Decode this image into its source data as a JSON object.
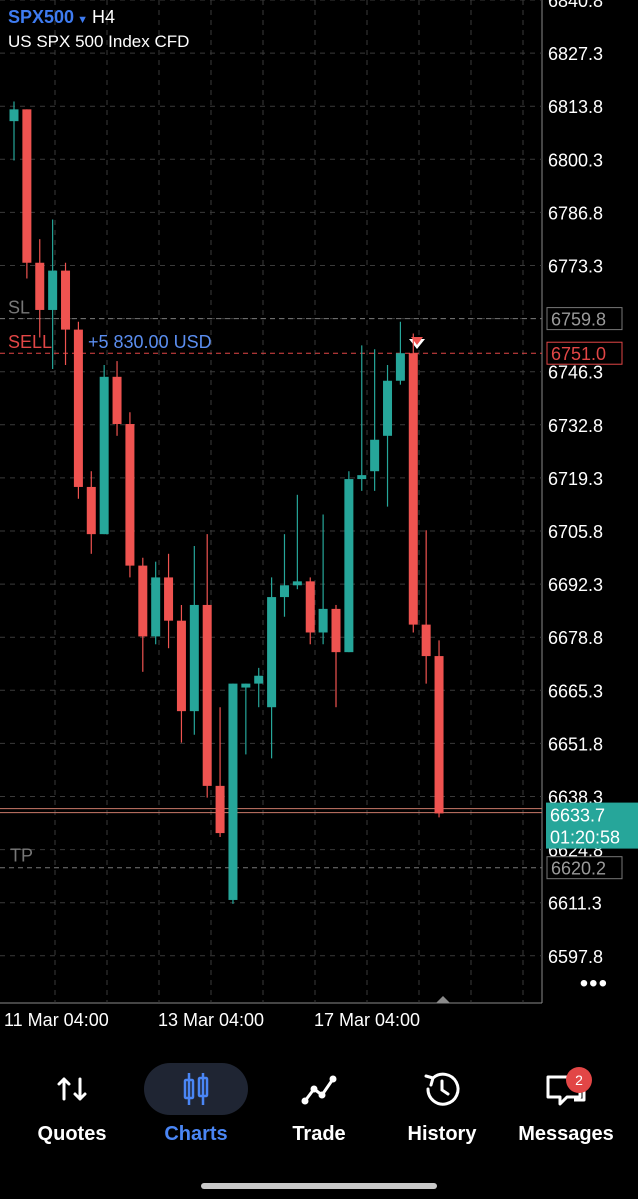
{
  "header": {
    "symbol": "SPX500",
    "timeframe": "H4",
    "instrument_name": "US SPX 500 Index CFD"
  },
  "chart_data": {
    "type": "candlestick",
    "price_axis_labels": [
      "6840.8",
      "6827.3",
      "6813.8",
      "6800.3",
      "6786.8",
      "6773.3",
      "6759.8",
      "6746.3",
      "6732.8",
      "6719.3",
      "6705.8",
      "6692.3",
      "6678.8",
      "6665.3",
      "6651.8",
      "6638.3",
      "6624.8",
      "6611.3",
      "6597.8"
    ],
    "time_axis_labels": [
      "11 Mar 04:00",
      "13 Mar 04:00",
      "17 Mar 04:00"
    ],
    "current_price": "6633.7",
    "countdown": "01:20:58",
    "lines": {
      "sl": {
        "label": "SL",
        "price_label": "6759.8"
      },
      "sell": {
        "label": "SELL",
        "profit_text": "+5 830.00 USD",
        "price_label": "6751.0"
      },
      "tp": {
        "label": "TP",
        "price_label": "6620.2"
      }
    },
    "candles": [
      {
        "o": 6810,
        "h": 6815,
        "l": 6800,
        "c": 6813
      },
      {
        "o": 6813,
        "h": 6813,
        "l": 6770,
        "c": 6774
      },
      {
        "o": 6774,
        "h": 6780,
        "l": 6755,
        "c": 6762
      },
      {
        "o": 6762,
        "h": 6785,
        "l": 6747,
        "c": 6772
      },
      {
        "o": 6772,
        "h": 6774,
        "l": 6748,
        "c": 6757
      },
      {
        "o": 6757,
        "h": 6759,
        "l": 6714,
        "c": 6717
      },
      {
        "o": 6717,
        "h": 6721,
        "l": 6700,
        "c": 6705
      },
      {
        "o": 6705,
        "h": 6748,
        "l": 6705,
        "c": 6745
      },
      {
        "o": 6745,
        "h": 6749,
        "l": 6730,
        "c": 6733
      },
      {
        "o": 6733,
        "h": 6736,
        "l": 6694,
        "c": 6697
      },
      {
        "o": 6697,
        "h": 6699,
        "l": 6670,
        "c": 6679
      },
      {
        "o": 6679,
        "h": 6698,
        "l": 6677,
        "c": 6694
      },
      {
        "o": 6694,
        "h": 6700,
        "l": 6676,
        "c": 6683
      },
      {
        "o": 6683,
        "h": 6687,
        "l": 6652,
        "c": 6660
      },
      {
        "o": 6660,
        "h": 6702,
        "l": 6654,
        "c": 6687
      },
      {
        "o": 6687,
        "h": 6705,
        "l": 6638,
        "c": 6641
      },
      {
        "o": 6641,
        "h": 6661,
        "l": 6628,
        "c": 6629
      },
      {
        "o": 6612,
        "h": 6667,
        "l": 6611,
        "c": 6667
      },
      {
        "o": 6666,
        "h": 6667,
        "l": 6649,
        "c": 6667
      },
      {
        "o": 6667,
        "h": 6671,
        "l": 6661,
        "c": 6669
      },
      {
        "o": 6661,
        "h": 6694,
        "l": 6648,
        "c": 6689
      },
      {
        "o": 6689,
        "h": 6705,
        "l": 6684,
        "c": 6692
      },
      {
        "o": 6692,
        "h": 6715,
        "l": 6691,
        "c": 6693
      },
      {
        "o": 6693,
        "h": 6694,
        "l": 6677,
        "c": 6680
      },
      {
        "o": 6680,
        "h": 6710,
        "l": 6677,
        "c": 6686
      },
      {
        "o": 6686,
        "h": 6687,
        "l": 6661,
        "c": 6675
      },
      {
        "o": 6675,
        "h": 6721,
        "l": 6675,
        "c": 6719
      },
      {
        "o": 6719,
        "h": 6753,
        "l": 6716,
        "c": 6720
      },
      {
        "o": 6721,
        "h": 6752,
        "l": 6716,
        "c": 6729
      },
      {
        "o": 6730,
        "h": 6748,
        "l": 6712,
        "c": 6744
      },
      {
        "o": 6744,
        "h": 6759,
        "l": 6743,
        "c": 6751
      },
      {
        "o": 6751,
        "h": 6756,
        "l": 6680,
        "c": 6682
      },
      {
        "o": 6682,
        "h": 6706,
        "l": 6667,
        "c": 6674
      },
      {
        "o": 6674,
        "h": 6678,
        "l": 6633,
        "c": 6634
      }
    ]
  },
  "colors": {
    "up": "#26a69a",
    "down": "#ef5350",
    "sl_tp": "#777777",
    "sell": "#e24646",
    "profit": "#5b8ef0",
    "current": "#26a69a",
    "accent": "#4a86f5"
  },
  "nav": {
    "items": [
      {
        "label": "Quotes",
        "icon": "quotes-arrows-icon"
      },
      {
        "label": "Charts",
        "icon": "charts-candles-icon",
        "active": true
      },
      {
        "label": "Trade",
        "icon": "trade-line-icon"
      },
      {
        "label": "History",
        "icon": "history-clock-icon"
      },
      {
        "label": "Messages",
        "icon": "messages-bubble-icon",
        "badge": "2"
      }
    ]
  }
}
